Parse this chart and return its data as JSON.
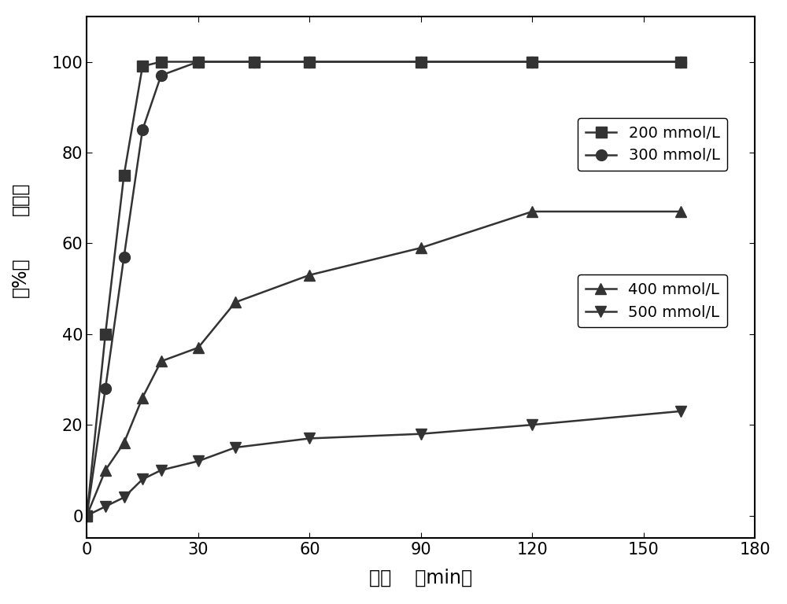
{
  "series": [
    {
      "label": "200 mmol/L",
      "x": [
        0,
        5,
        10,
        15,
        20,
        30,
        45,
        60,
        90,
        120,
        160
      ],
      "y": [
        0,
        40,
        75,
        99,
        100,
        100,
        100,
        100,
        100,
        100,
        100
      ],
      "marker": "s",
      "color": "#333333"
    },
    {
      "label": "300 mmol/L",
      "x": [
        0,
        5,
        10,
        15,
        20,
        30,
        45,
        60,
        90,
        120,
        160
      ],
      "y": [
        0,
        28,
        57,
        85,
        97,
        100,
        100,
        100,
        100,
        100,
        100
      ],
      "marker": "o",
      "color": "#333333"
    },
    {
      "label": "400 mmol/L",
      "x": [
        0,
        5,
        10,
        15,
        20,
        30,
        40,
        60,
        90,
        120,
        160
      ],
      "y": [
        0,
        10,
        16,
        26,
        34,
        37,
        47,
        53,
        59,
        67,
        67
      ],
      "marker": "^",
      "color": "#333333"
    },
    {
      "label": "500 mmol/L",
      "x": [
        0,
        5,
        10,
        15,
        20,
        30,
        40,
        60,
        90,
        120,
        160
      ],
      "y": [
        0,
        2,
        4,
        8,
        10,
        12,
        15,
        17,
        18,
        20,
        23
      ],
      "marker": "v",
      "color": "#333333"
    }
  ],
  "xlabel_cn": "时间",
  "xlabel_unit": "（min）",
  "ylabel_cn": "转化率",
  "ylabel_unit": "（%）",
  "xlim": [
    0,
    180
  ],
  "ylim": [
    -5,
    110
  ],
  "xticks": [
    0,
    30,
    60,
    90,
    120,
    150,
    180
  ],
  "yticks": [
    0,
    20,
    40,
    60,
    80,
    100
  ],
  "legend_fontsize": 14,
  "axis_label_fontsize": 17,
  "tick_fontsize": 15,
  "marker_size": 10,
  "line_width": 1.8,
  "background_color": "#ffffff"
}
